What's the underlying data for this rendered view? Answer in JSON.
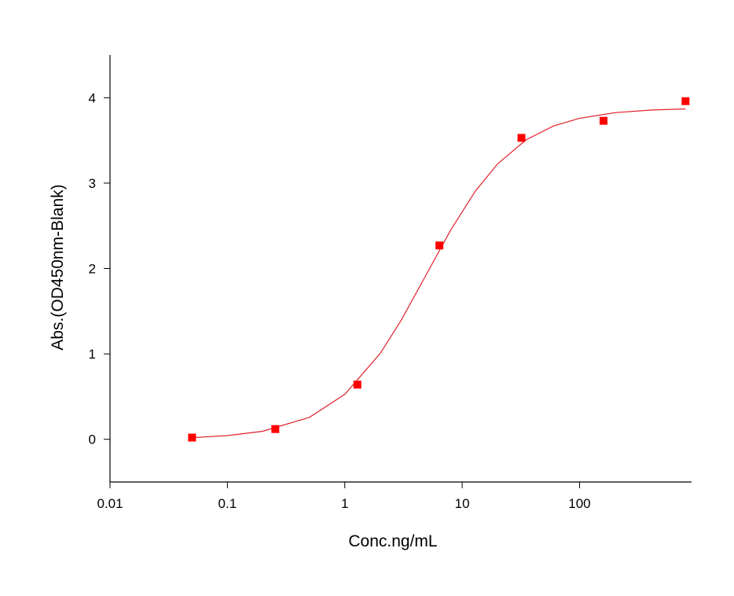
{
  "chart_data": {
    "type": "scatter",
    "x_label": "Conc.ng/mL",
    "y_label": "Abs.(OD450nm-Blank)",
    "xscale": "log",
    "xlim": [
      0.01,
      900
    ],
    "ylim": [
      -0.5,
      4.5
    ],
    "xticks": [
      0.01,
      0.1,
      1,
      10,
      100
    ],
    "yticks": [
      0,
      1,
      2,
      3,
      4
    ],
    "series": [
      {
        "type": "scatter",
        "color": "#ff0000",
        "marker": "square",
        "x": [
          0.05,
          0.256,
          1.28,
          6.4,
          32,
          160,
          800
        ],
        "values": [
          0.02,
          0.12,
          0.64,
          2.27,
          3.53,
          3.73,
          3.96
        ]
      },
      {
        "type": "line",
        "color": "#e0202a",
        "x": [
          0.05,
          0.1,
          0.2,
          0.5,
          1,
          2,
          3,
          5,
          8,
          13,
          20,
          35,
          60,
          100,
          200,
          400,
          800
        ],
        "values": [
          0.019,
          0.043,
          0.094,
          0.257,
          0.527,
          1.004,
          1.386,
          1.94,
          2.452,
          2.91,
          3.225,
          3.506,
          3.669,
          3.76,
          3.825,
          3.855,
          3.869
        ]
      }
    ]
  }
}
